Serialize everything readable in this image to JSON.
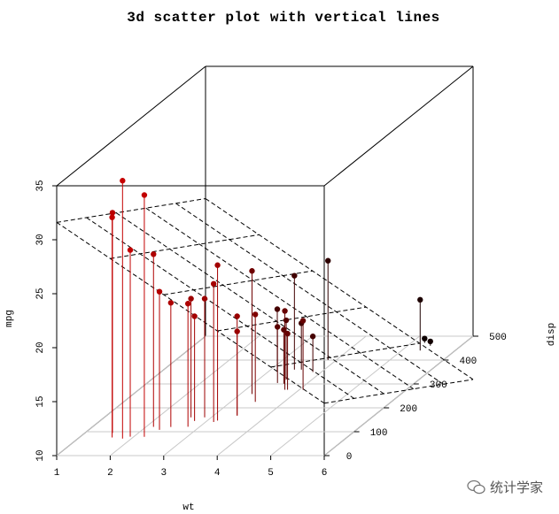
{
  "watermark": "统计学家",
  "chart_data": {
    "type": "scatter",
    "title": "3d scatter plot with vertical lines",
    "xlabel": "wt",
    "ylabel": "disp",
    "zlabel": "mpg",
    "xlim": [
      1,
      6
    ],
    "ylim": [
      0,
      500
    ],
    "zlim": [
      10,
      35
    ],
    "x_ticks": [
      1,
      2,
      3,
      4,
      5,
      6
    ],
    "y_ticks": [
      0,
      100,
      200,
      300,
      400,
      500
    ],
    "z_ticks": [
      10,
      15,
      20,
      25,
      30,
      35
    ],
    "vertical_lines": true,
    "grid_floor": true,
    "regression_plane": true,
    "points": [
      {
        "x": 2.62,
        "y": 160,
        "z": 21.0
      },
      {
        "x": 2.875,
        "y": 160,
        "z": 21.0
      },
      {
        "x": 2.32,
        "y": 108,
        "z": 22.8
      },
      {
        "x": 3.215,
        "y": 258,
        "z": 21.4
      },
      {
        "x": 3.44,
        "y": 360,
        "z": 18.7
      },
      {
        "x": 3.46,
        "y": 225,
        "z": 18.1
      },
      {
        "x": 3.57,
        "y": 360,
        "z": 14.3
      },
      {
        "x": 3.19,
        "y": 146.7,
        "z": 24.4
      },
      {
        "x": 3.15,
        "y": 140.8,
        "z": 22.8
      },
      {
        "x": 3.44,
        "y": 167.6,
        "z": 19.2
      },
      {
        "x": 3.44,
        "y": 167.6,
        "z": 17.8
      },
      {
        "x": 4.07,
        "y": 275.8,
        "z": 16.4
      },
      {
        "x": 3.73,
        "y": 275.8,
        "z": 17.3
      },
      {
        "x": 3.78,
        "y": 275.8,
        "z": 15.2
      },
      {
        "x": 5.25,
        "y": 472,
        "z": 10.4
      },
      {
        "x": 5.424,
        "y": 460,
        "z": 10.4
      },
      {
        "x": 5.345,
        "y": 440,
        "z": 14.7
      },
      {
        "x": 2.2,
        "y": 78.7,
        "z": 32.4
      },
      {
        "x": 1.615,
        "y": 75.7,
        "z": 30.4
      },
      {
        "x": 1.835,
        "y": 71.1,
        "z": 33.9
      },
      {
        "x": 2.465,
        "y": 120.1,
        "z": 21.5
      },
      {
        "x": 3.52,
        "y": 318,
        "z": 15.5
      },
      {
        "x": 3.435,
        "y": 304,
        "z": 15.2
      },
      {
        "x": 3.84,
        "y": 350,
        "z": 13.3
      },
      {
        "x": 3.845,
        "y": 400,
        "z": 19.2
      },
      {
        "x": 1.935,
        "y": 79,
        "z": 27.3
      },
      {
        "x": 2.14,
        "y": 120.3,
        "z": 26.0
      },
      {
        "x": 1.513,
        "y": 95.1,
        "z": 30.4
      },
      {
        "x": 3.17,
        "y": 351,
        "z": 15.8
      },
      {
        "x": 2.77,
        "y": 145,
        "z": 19.7
      },
      {
        "x": 3.57,
        "y": 301,
        "z": 15.0
      },
      {
        "x": 2.78,
        "y": 121,
        "z": 21.4
      }
    ]
  }
}
